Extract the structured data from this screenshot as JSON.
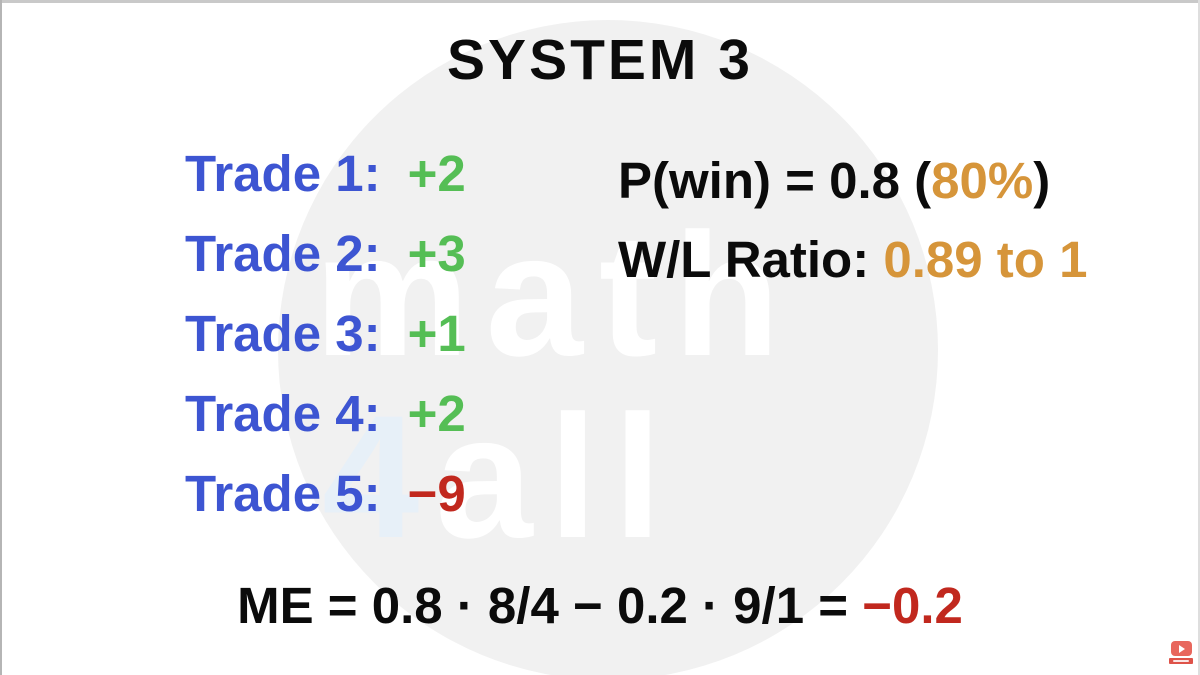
{
  "title": "SYSTEM 3",
  "watermark": {
    "line1": "math",
    "line2_four": "4",
    "line2_all": "all"
  },
  "trades": [
    {
      "label": "Trade 1:",
      "value": "+2"
    },
    {
      "label": "Trade 2:",
      "value": "+3"
    },
    {
      "label": "Trade 3:",
      "value": "+1"
    },
    {
      "label": "Trade 4:",
      "value": "+2"
    },
    {
      "label": "Trade 5:",
      "value": "−9"
    }
  ],
  "stats": {
    "pwin_prefix": "P(win) = 0.8 (",
    "pwin_highlight": "80%",
    "pwin_suffix": ")",
    "wl_prefix": "W/L Ratio: ",
    "wl_value": "0.89 to 1"
  },
  "formula": {
    "expression": "ME = 0.8 · 8/4 − 0.2 · 9/1 = ",
    "result": "−0.2"
  },
  "icons": {
    "youtube_play": "play-triangle"
  },
  "colors": {
    "trade_label_blue": "#3d55d2",
    "gain_green": "#55be55",
    "loss_red": "#c1281e",
    "highlight_orange": "#d6953a",
    "text_black": "#0b0b0b",
    "watermark_circle_gray": "#f1f1f1",
    "watermark_four_blue": "#e7f0f8",
    "watermark_text_white": "#ffffff",
    "youtube_red": "#e8675d",
    "youtube_banner_red": "#de5349"
  }
}
